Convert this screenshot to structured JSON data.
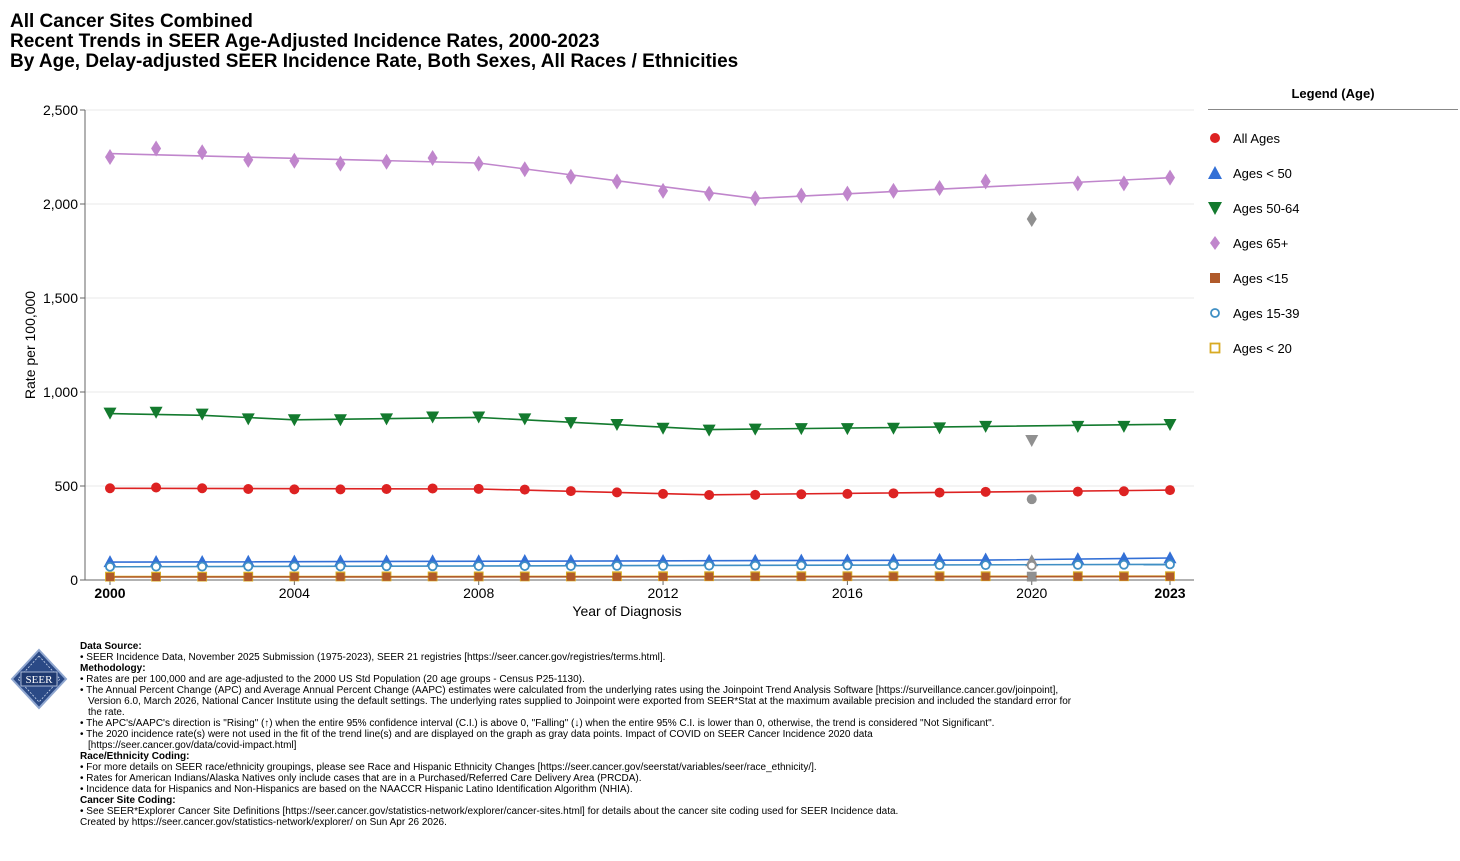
{
  "titles": {
    "line1": "All Cancer Sites Combined",
    "line2": "Recent Trends in SEER Age-Adjusted Incidence Rates, 2000-2023",
    "line3": "By Age, Delay-adjusted SEER Incidence Rate, Both Sexes, All Races / Ethnicities"
  },
  "legend": {
    "title": "Legend (Age)",
    "items": [
      {
        "label": "All Ages",
        "color": "#dd2222",
        "shape": "circle"
      },
      {
        "label": "Ages < 50",
        "color": "#3370d6",
        "shape": "triangle-up"
      },
      {
        "label": "Ages 50-64",
        "color": "#137a2e",
        "shape": "triangle-down"
      },
      {
        "label": "Ages 65+",
        "color": "#c086cc",
        "shape": "diamond"
      },
      {
        "label": "Ages <15",
        "color": "#b05a2a",
        "shape": "square"
      },
      {
        "label": "Ages 15-39",
        "color": "#3f8fc4",
        "shape": "circle-open"
      },
      {
        "label": "Ages < 20",
        "color": "#d8aa22",
        "shape": "square-open"
      }
    ]
  },
  "chart_data": {
    "type": "line",
    "xlabel": "Year of Diagnosis",
    "ylabel": "Rate per 100,000",
    "xlim": [
      2000,
      2023
    ],
    "ylim": [
      0,
      2500
    ],
    "x_ticks": [
      {
        "value": 2000,
        "label": "2000",
        "bold": true
      },
      {
        "value": 2004,
        "label": "2004",
        "bold": false
      },
      {
        "value": 2008,
        "label": "2008",
        "bold": false
      },
      {
        "value": 2012,
        "label": "2012",
        "bold": false
      },
      {
        "value": 2016,
        "label": "2016",
        "bold": false
      },
      {
        "value": 2020,
        "label": "2020",
        "bold": false
      },
      {
        "value": 2023,
        "label": "2023",
        "bold": true
      }
    ],
    "y_ticks": [
      {
        "value": 0,
        "label": "0"
      },
      {
        "value": 500,
        "label": "500"
      },
      {
        "value": 1000,
        "label": "1,000"
      },
      {
        "value": 1500,
        "label": "1,500"
      },
      {
        "value": 2000,
        "label": "2,000"
      },
      {
        "value": 2500,
        "label": "2,500"
      }
    ],
    "gray_color": "#909090",
    "years": [
      2000,
      2001,
      2002,
      2003,
      2004,
      2005,
      2006,
      2007,
      2008,
      2009,
      2010,
      2011,
      2012,
      2013,
      2014,
      2015,
      2016,
      2017,
      2018,
      2019,
      2020,
      2021,
      2022,
      2023
    ],
    "series": [
      {
        "name": "Ages 65+",
        "color": "#c086cc",
        "shape": "diamond",
        "values": [
          2250,
          2295,
          2275,
          2235,
          2230,
          2215,
          2225,
          2245,
          2215,
          2185,
          2145,
          2120,
          2070,
          2055,
          2030,
          2045,
          2055,
          2070,
          2085,
          2120,
          1920,
          2110,
          2110,
          2140
        ],
        "trend": [
          [
            2000,
            2268
          ],
          [
            2008,
            2218
          ],
          [
            2014,
            2030
          ],
          [
            2023,
            2140
          ]
        ]
      },
      {
        "name": "Ages 50-64",
        "color": "#137a2e",
        "shape": "triangle-down",
        "values": [
          890,
          895,
          885,
          860,
          855,
          855,
          860,
          870,
          870,
          860,
          840,
          830,
          810,
          800,
          805,
          808,
          808,
          810,
          812,
          820,
          745,
          820,
          820,
          830
        ],
        "trend": [
          [
            2000,
            885
          ],
          [
            2002,
            876
          ],
          [
            2004,
            852
          ],
          [
            2008,
            865
          ],
          [
            2013,
            800
          ],
          [
            2023,
            828
          ]
        ]
      },
      {
        "name": "All Ages",
        "color": "#dd2222",
        "shape": "circle",
        "values": [
          488,
          492,
          488,
          484,
          482,
          482,
          484,
          487,
          485,
          481,
          473,
          466,
          458,
          452,
          453,
          456,
          458,
          461,
          465,
          469,
          430,
          470,
          472,
          478
        ],
        "trend": [
          [
            2000,
            488
          ],
          [
            2008,
            484
          ],
          [
            2013,
            453
          ],
          [
            2023,
            478
          ]
        ]
      },
      {
        "name": "Ages < 50",
        "color": "#3370d6",
        "shape": "triangle-up",
        "values": [
          95,
          96,
          96,
          97,
          98,
          99,
          99,
          100,
          100,
          101,
          101,
          101,
          101,
          102,
          102,
          103,
          104,
          105,
          107,
          109,
          100,
          111,
          113,
          116
        ],
        "trend": [
          [
            2000,
            95
          ],
          [
            2019,
            106
          ],
          [
            2023,
            117
          ]
        ]
      },
      {
        "name": "Ages 15-39",
        "color": "#3f8fc4",
        "shape": "circle-open",
        "values": [
          70,
          71,
          71,
          72,
          72,
          72,
          73,
          73,
          74,
          74,
          74,
          75,
          75,
          76,
          76,
          77,
          77,
          78,
          79,
          79,
          76,
          80,
          81,
          83
        ],
        "trend": [
          [
            2000,
            70
          ],
          [
            2023,
            83
          ]
        ]
      },
      {
        "name": "Ages < 20",
        "color": "#d8aa22",
        "shape": "square-open",
        "values": [
          18,
          18,
          18,
          18,
          19,
          19,
          19,
          19,
          19,
          19,
          19,
          20,
          20,
          20,
          20,
          20,
          20,
          20,
          20,
          20,
          18,
          20,
          20,
          20
        ],
        "trend": [
          [
            2000,
            18
          ],
          [
            2023,
            20
          ]
        ]
      },
      {
        "name": "Ages <15",
        "color": "#b05a2a",
        "shape": "square",
        "values": [
          16,
          16,
          16,
          16,
          17,
          17,
          17,
          17,
          17,
          17,
          17,
          17,
          17,
          18,
          18,
          18,
          18,
          18,
          18,
          18,
          16,
          18,
          18,
          18
        ],
        "trend": [
          [
            2000,
            16
          ],
          [
            2023,
            18
          ]
        ]
      }
    ],
    "covid_year": 2020
  },
  "seal": {
    "text": "SEER"
  },
  "footer": {
    "data_source_head": "Data Source:",
    "data_source_1": "• SEER Incidence Data, November 2025 Submission (1975-2023), SEER 21 registries [https://seer.cancer.gov/registries/terms.html].",
    "methodology_head": "Methodology:",
    "methodology_1": "• Rates are per 100,000 and are age-adjusted to the 2000 US Std Population (20 age groups - Census P25-1130).",
    "methodology_2a": "• The Annual Percent Change (APC) and Average Annual Percent Change (AAPC) estimates were calculated from the underlying rates using the Joinpoint Trend Analysis Software [https://surveillance.cancer.gov/joinpoint],",
    "methodology_2b": "Version 6.0, March 2026, National Cancer Institute using the default settings. The underlying rates supplied to Joinpoint were exported from SEER*Stat at the maximum available precision and included the standard error for",
    "methodology_2c": "the rate.",
    "methodology_3": "• The APC's/AAPC's direction is \"Rising\" (↑) when the entire 95% confidence interval (C.I.) is above 0, \"Falling\" (↓) when the entire 95% C.I. is lower than 0, otherwise, the trend is considered \"Not Significant\".",
    "methodology_4a": "• The 2020 incidence rate(s) were not used in the fit of the trend line(s) and are displayed on the graph as gray data points. Impact of COVID on SEER Cancer Incidence 2020 data",
    "methodology_4b": "[https://seer.cancer.gov/data/covid-impact.html]",
    "race_head": "Race/Ethnicity Coding:",
    "race_1": "• For more details on SEER race/ethnicity groupings, please see Race and Hispanic Ethnicity Changes [https://seer.cancer.gov/seerstat/variables/seer/race_ethnicity/].",
    "race_2": "• Rates for American Indians/Alaska Natives only include cases that are in a Purchased/Referred Care Delivery Area (PRCDA).",
    "race_3": "• Incidence data for Hispanics and Non-Hispanics are based on the NAACCR Hispanic Latino Identification Algorithm (NHIA).",
    "site_head": "Cancer Site Coding:",
    "site_1": "• See SEER*Explorer Cancer Site Definitions [https://seer.cancer.gov/statistics-network/explorer/cancer-sites.html] for details about the cancer site coding used for SEER Incidence data.",
    "created": "Created by https://seer.cancer.gov/statistics-network/explorer/ on Sun Apr 26 2026."
  }
}
